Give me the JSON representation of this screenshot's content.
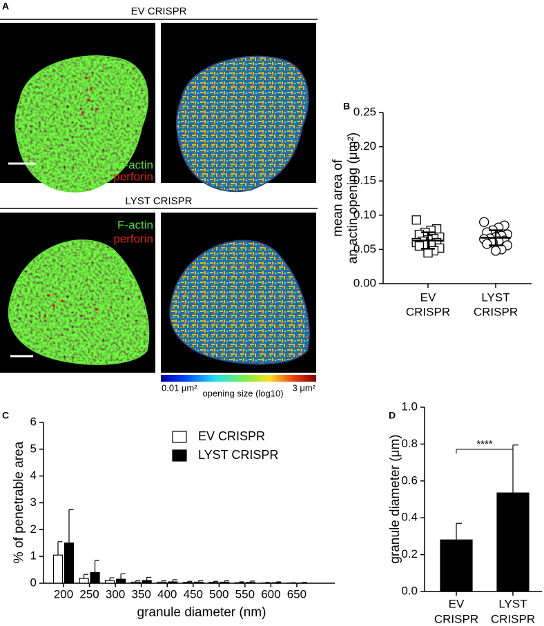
{
  "figure": {
    "panel_labels": [
      "A",
      "B",
      "C",
      "D"
    ],
    "panel_a": {
      "conditions": [
        "EV CRISPR",
        "LYST CRISPR"
      ],
      "stain_labels": [
        "F-actin",
        "perforin"
      ],
      "colorbar": {
        "min_label": "0.01 μm²",
        "title": "opening size (log10)",
        "max_label": "3 μm²"
      }
    }
  },
  "chart_data": [
    {
      "type": "strip",
      "ylabel": [
        "mean area of",
        "an actin opening (μm²)"
      ],
      "categories": [
        [
          "EV",
          "CRISPR"
        ],
        [
          "LYST",
          "CRISPR"
        ]
      ],
      "series": [
        {
          "marker": "square",
          "values": [
            0.093,
            0.08,
            0.078,
            0.075,
            0.072,
            0.068,
            0.066,
            0.064,
            0.062,
            0.06,
            0.06,
            0.058,
            0.057,
            0.055,
            0.052,
            0.048,
            0.045
          ],
          "mean": 0.063,
          "sd": 0.012
        },
        {
          "marker": "circle",
          "values": [
            0.09,
            0.085,
            0.082,
            0.078,
            0.075,
            0.072,
            0.07,
            0.068,
            0.066,
            0.065,
            0.063,
            0.062,
            0.06,
            0.058,
            0.056,
            0.05,
            0.048
          ],
          "mean": 0.067,
          "sd": 0.011
        }
      ],
      "ylim": [
        0,
        0.25
      ],
      "yticks": [
        {
          "value": 0,
          "label": "0.00"
        },
        0.05,
        {
          "value": 0.1,
          "label": "0.10"
        },
        0.15,
        {
          "value": 0.2,
          "label": "0.20"
        },
        0.25
      ]
    },
    {
      "type": "bar",
      "ylabel": "% of penetrable area",
      "xlabel": "granule diameter (nm)",
      "categories": [
        200,
        250,
        300,
        350,
        400,
        450,
        500,
        550,
        600,
        650
      ],
      "series": [
        {
          "name": "EV CRISPR",
          "color": "#ffffff",
          "values": [
            1.05,
            0.18,
            0.1,
            0.04,
            0.04,
            0.03,
            0.03,
            0.02,
            0.01,
            0.01
          ],
          "errors": [
            0.5,
            0.15,
            0.1,
            0.05,
            0.05,
            0.04,
            0.04,
            0.03,
            0.02,
            0.01
          ]
        },
        {
          "name": "LYST CRISPR",
          "color": "#000000",
          "values": [
            1.5,
            0.4,
            0.15,
            0.1,
            0.05,
            0.04,
            0.04,
            0.03,
            0.02,
            0.01
          ],
          "errors": [
            1.25,
            0.45,
            0.2,
            0.12,
            0.08,
            0.06,
            0.05,
            0.05,
            0.03,
            0.02
          ]
        }
      ],
      "ylim": [
        0,
        6
      ],
      "yticks": [
        0,
        1,
        2,
        3,
        4,
        5,
        6
      ],
      "legend": "top-right"
    },
    {
      "type": "bar",
      "ylabel": "granule diameter (μm)",
      "categories": [
        [
          "EV",
          "CRISPR"
        ],
        [
          "LYST",
          "CRISPR"
        ]
      ],
      "series": [
        {
          "color": "#000000",
          "values": [
            0.28,
            0.535
          ],
          "errors": [
            0.09,
            0.26
          ]
        }
      ],
      "annotation": "****",
      "ylim": [
        0,
        1
      ],
      "yticks": [
        {
          "value": 0,
          "label": "0.0"
        },
        0.2,
        0.4,
        0.6,
        0.8,
        {
          "value": 1,
          "label": "1.0"
        }
      ]
    }
  ]
}
